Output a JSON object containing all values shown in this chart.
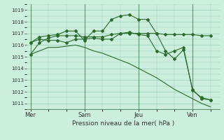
{
  "bg_color": "#cceedd",
  "line_color": "#2d6a2d",
  "grid_color": "#99ccbb",
  "xlabel": "Pression niveau de la mer( hPa )",
  "ylim": [
    1010.5,
    1019.5
  ],
  "yticks": [
    1011,
    1012,
    1013,
    1014,
    1015,
    1016,
    1017,
    1018,
    1019
  ],
  "day_labels": [
    "Mer",
    "Sam",
    "Jeu",
    "Ven"
  ],
  "day_positions": [
    0,
    3,
    6,
    9
  ],
  "vline_positions": [
    0,
    3,
    6,
    9
  ],
  "series1_x": [
    0,
    0.5,
    1,
    1.5,
    2,
    2.5,
    3,
    3.5,
    4,
    4.5,
    5,
    5.5,
    6,
    6.5,
    7,
    7.5,
    8,
    8.5,
    9,
    9.5,
    10
  ],
  "series1_y": [
    1015.2,
    1016.2,
    1016.6,
    1016.8,
    1016.8,
    1016.8,
    1016.7,
    1016.7,
    1016.7,
    1016.9,
    1017.0,
    1017.0,
    1017.0,
    1017.0,
    1017.0,
    1016.9,
    1016.9,
    1016.9,
    1016.9,
    1016.8,
    1016.8
  ],
  "series2_x": [
    0,
    0.5,
    1,
    1.5,
    2,
    2.5,
    3,
    3.5,
    4,
    4.5,
    5,
    5.5,
    6,
    6.5,
    7,
    7.5,
    8,
    8.5,
    9,
    9.5,
    10
  ],
  "series2_y": [
    1016.2,
    1016.7,
    1016.8,
    1016.9,
    1017.2,
    1017.2,
    1016.4,
    1017.2,
    1017.2,
    1018.2,
    1018.5,
    1018.6,
    1018.2,
    1018.2,
    1017.0,
    1015.5,
    1014.8,
    1015.6,
    1012.2,
    1011.4,
    1011.3
  ],
  "series3_x": [
    0,
    0.5,
    1,
    1.5,
    2,
    2.5,
    3,
    3.5,
    4,
    4.5,
    5,
    5.5,
    6,
    6.5,
    7,
    7.5,
    8,
    8.5,
    9,
    9.5,
    10
  ],
  "series3_y": [
    1016.2,
    1016.5,
    1016.4,
    1016.4,
    1016.2,
    1016.5,
    1016.5,
    1016.6,
    1016.5,
    1016.5,
    1017.0,
    1017.1,
    1016.9,
    1016.8,
    1015.5,
    1015.2,
    1015.5,
    1015.8,
    1012.1,
    1011.5,
    1011.3
  ],
  "series4_x": [
    0,
    0.5,
    1,
    1.5,
    2,
    2.5,
    3,
    3.5,
    4,
    4.5,
    5,
    5.5,
    6,
    6.5,
    7,
    7.5,
    8,
    8.5,
    9,
    9.5,
    10
  ],
  "series4_y": [
    1015.2,
    1015.5,
    1015.8,
    1015.8,
    1015.9,
    1016.0,
    1015.8,
    1015.5,
    1015.3,
    1015.0,
    1014.7,
    1014.4,
    1014.0,
    1013.6,
    1013.2,
    1012.7,
    1012.2,
    1011.8,
    1011.4,
    1011.0,
    1010.7
  ]
}
